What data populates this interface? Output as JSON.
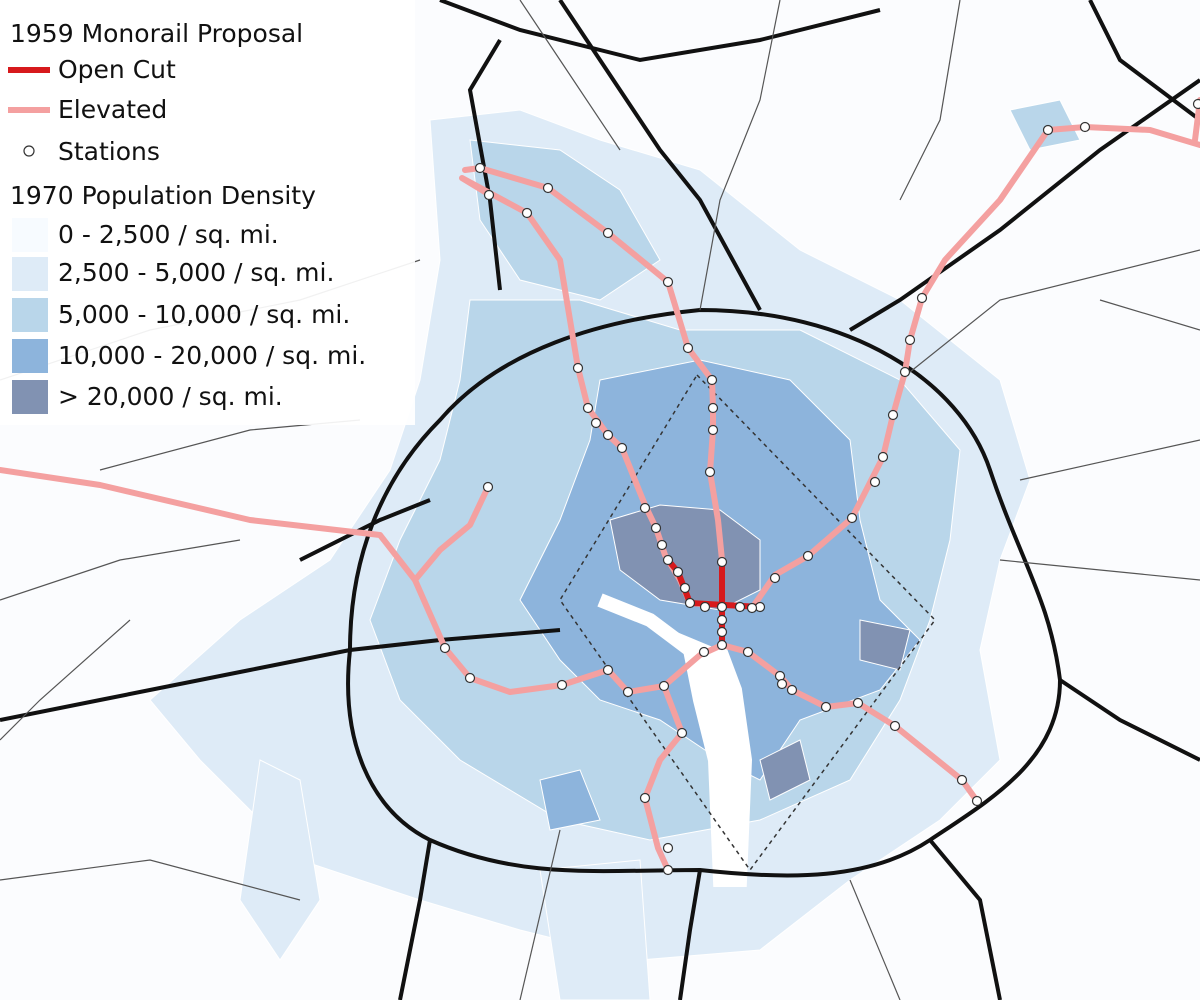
{
  "legend": {
    "title": "1959 Monorail Proposal",
    "items": [
      {
        "label": "Open Cut"
      },
      {
        "label": "Elevated"
      },
      {
        "label": "Stations"
      }
    ]
  },
  "density_legend": {
    "title": "1970 Population Density",
    "classes": [
      "0 - 2,500 / sq. mi.",
      "2,500 - 5,000 / sq. mi.",
      "5,000 - 10,000 / sq. mi.",
      "10,000 - 20,000 / sq. mi.",
      "> 20,000 / sq. mi."
    ]
  }
}
